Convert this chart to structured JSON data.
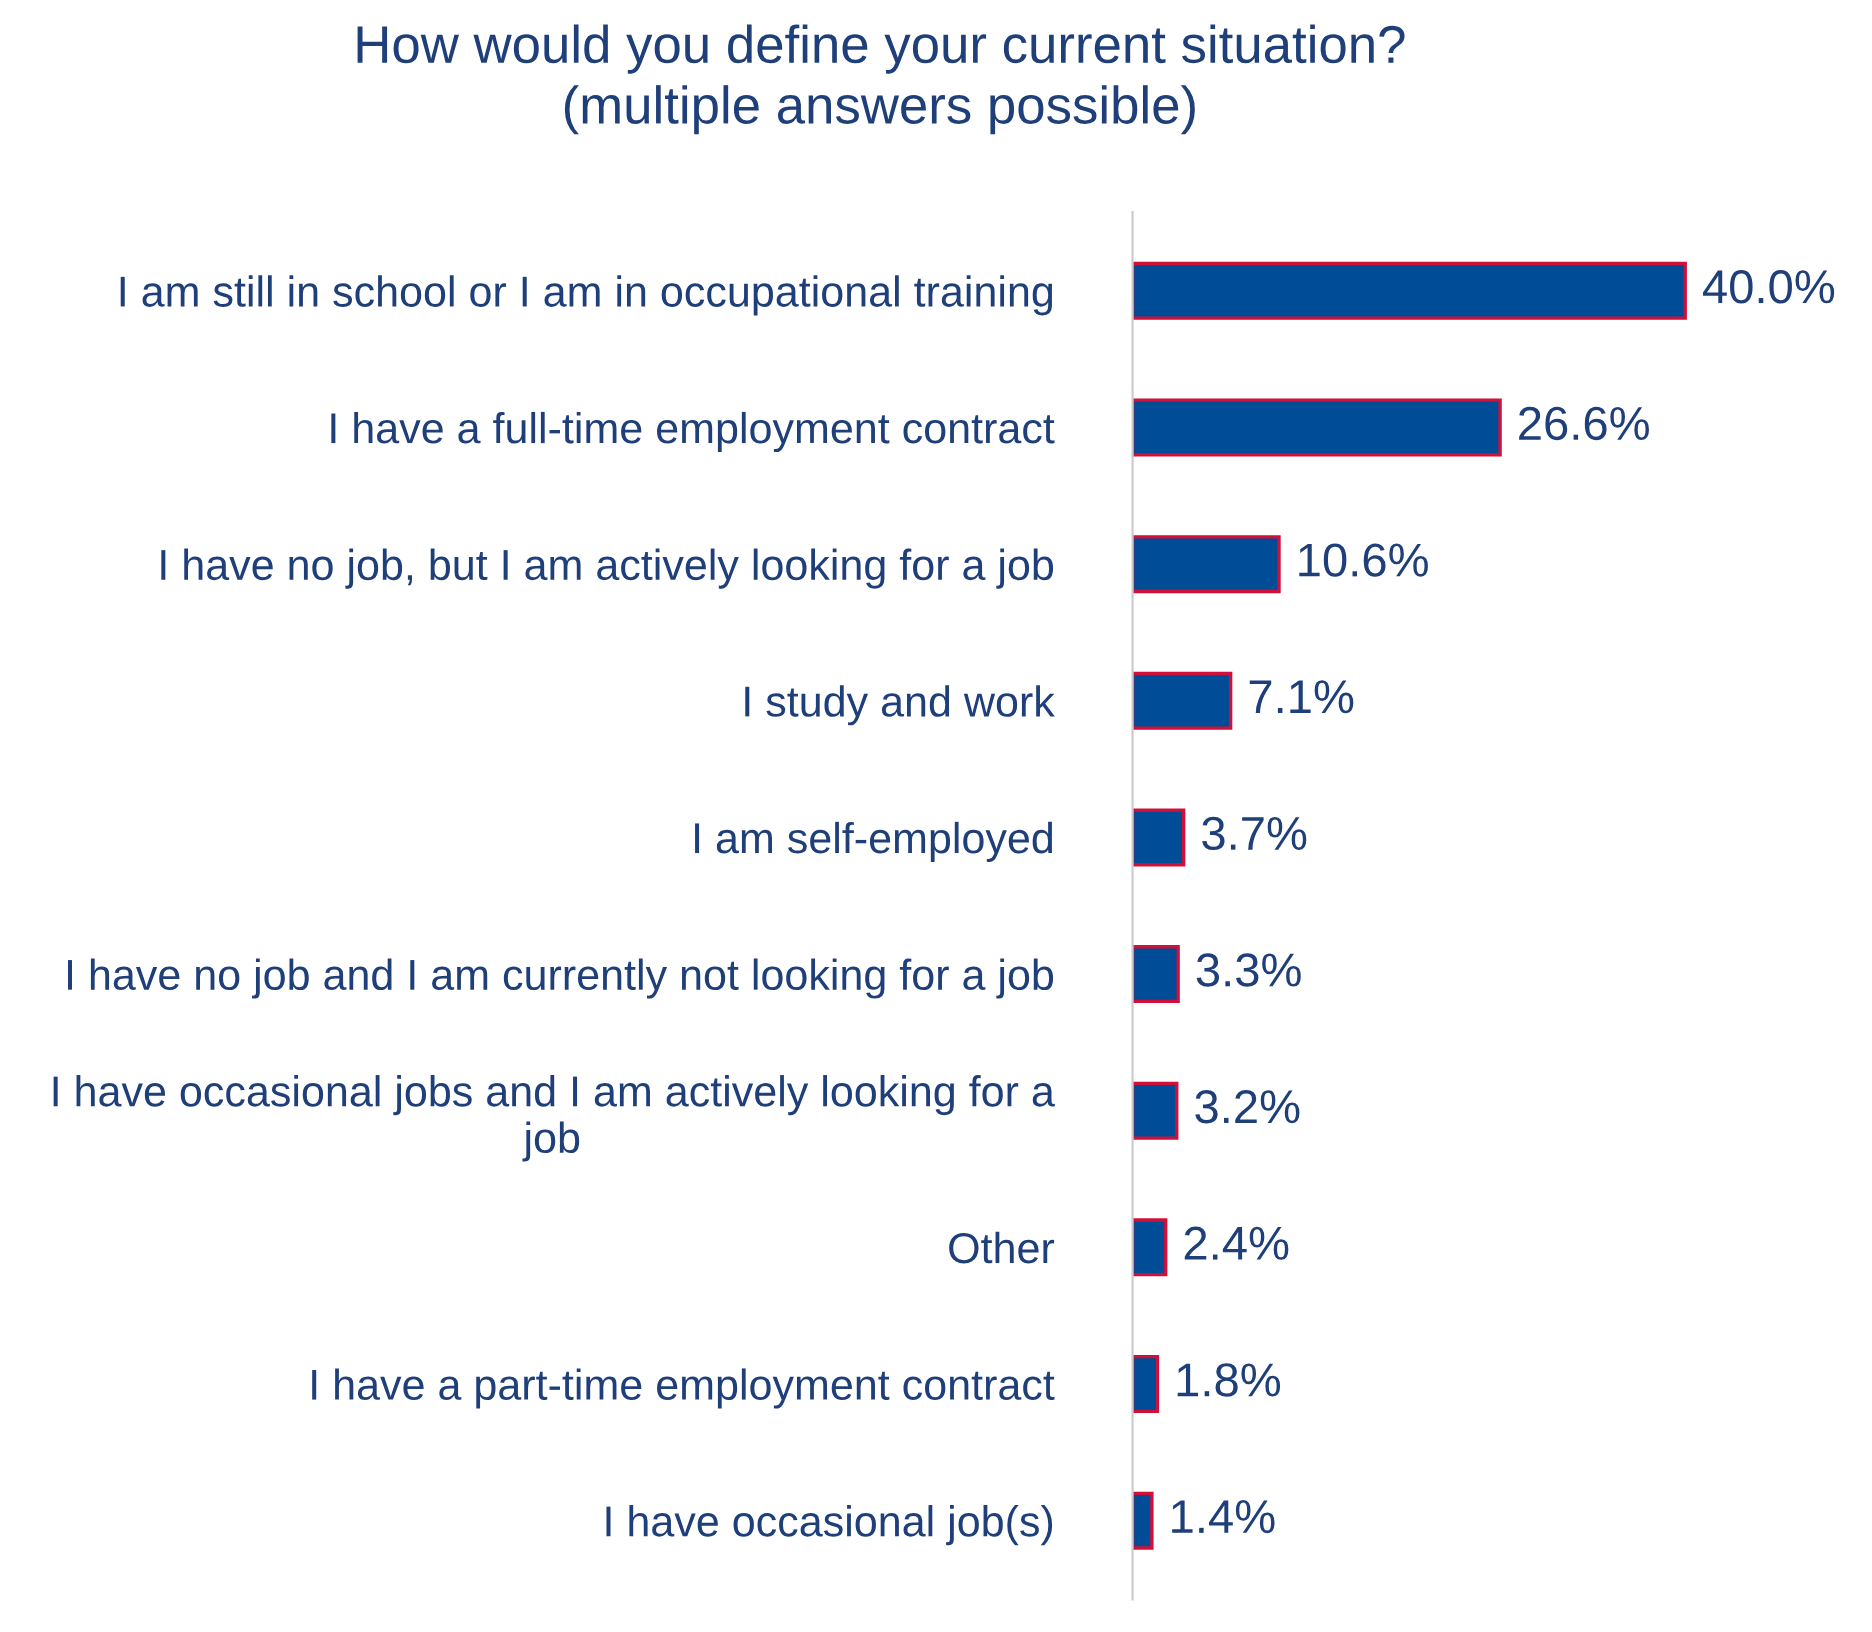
{
  "chart_data": {
    "type": "bar",
    "orientation": "horizontal",
    "title": "How would you define your current situation?\n(multiple answers possible)",
    "categories": [
      "I am still in school or I am in occupational training",
      "I have a full-time employment contract",
      "I have no job, but I am actively looking for a job",
      "I study and work",
      "I am self-employed",
      "I have no job and I am currently not looking for a job",
      "I have occasional jobs and I am actively looking for a\njob",
      "Other",
      "I have a part-time employment contract",
      "I have occasional job(s)"
    ],
    "values": [
      40.0,
      26.6,
      10.6,
      7.1,
      3.7,
      3.3,
      3.2,
      2.4,
      1.8,
      1.4
    ],
    "value_labels": [
      "40.0%",
      "26.6%",
      "10.6%",
      "7.1%",
      "3.7%",
      "3.3%",
      "3.2%",
      "2.4%",
      "1.8%",
      "1.4%"
    ],
    "color": "#004c97",
    "grid": false,
    "legend": false
  }
}
